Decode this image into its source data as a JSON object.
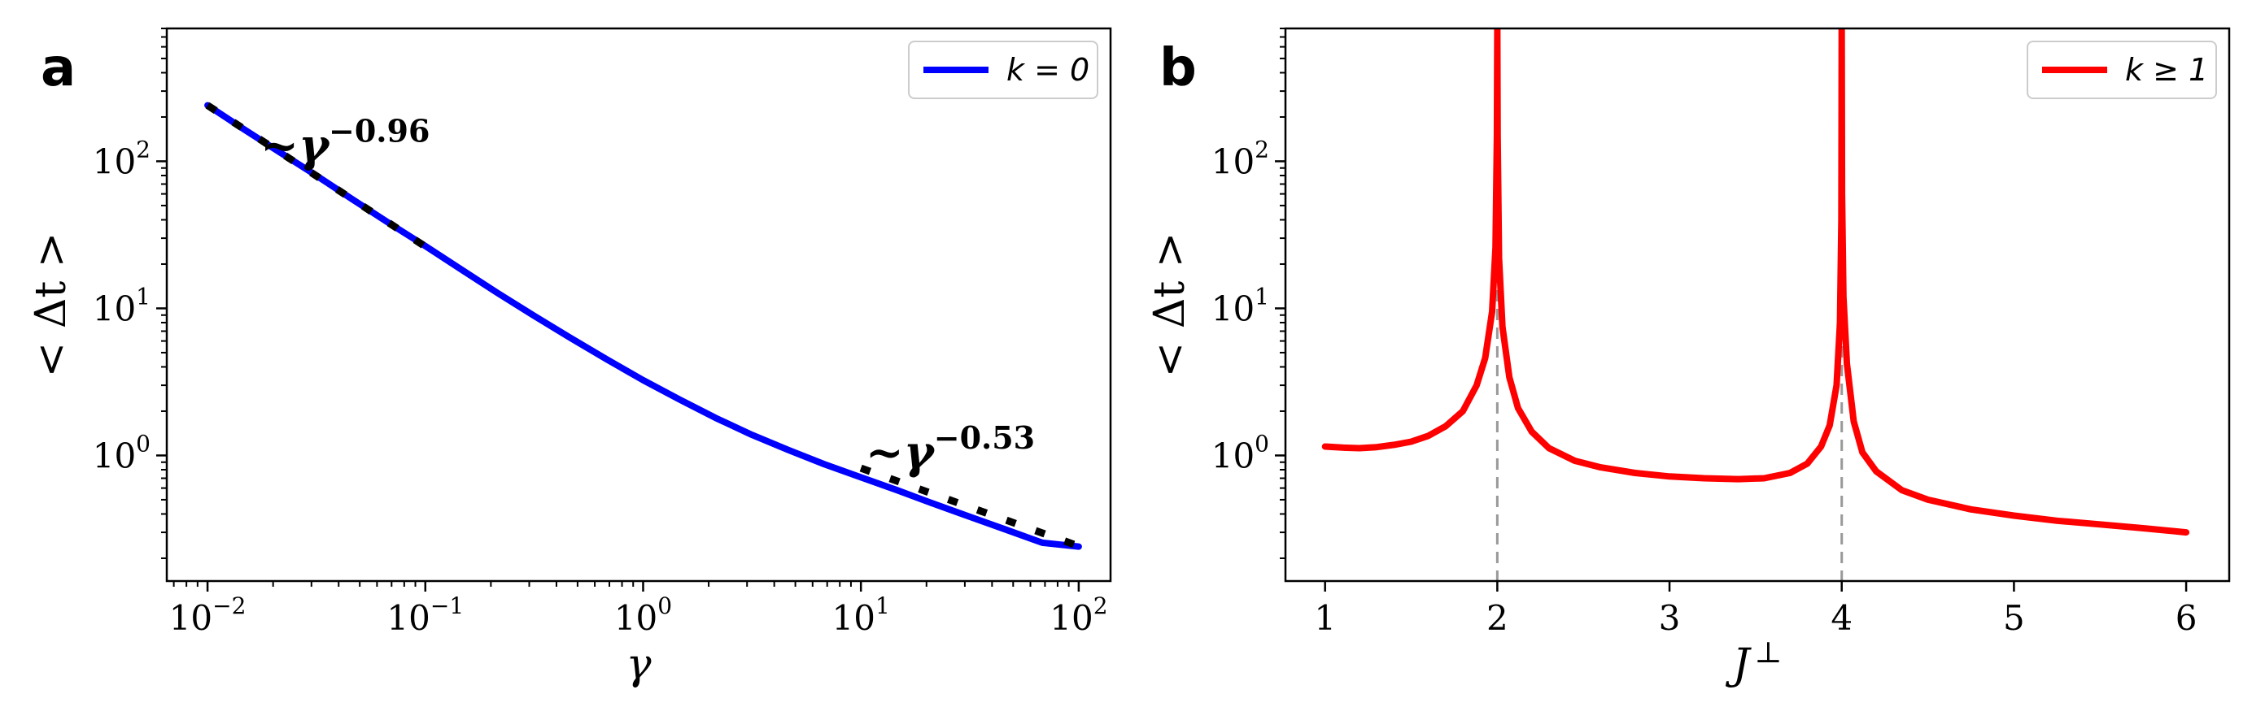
{
  "chart_data": [
    {
      "panel_label": "a",
      "type": "line",
      "xlabel": "γ",
      "ylabel": "< Δt >",
      "x_scale": "log",
      "y_scale": "log",
      "xlim": [
        0.0065,
        140
      ],
      "ylim": [
        0.14,
        800
      ],
      "grid": false,
      "legend_position": "top-right",
      "x_ticks": [
        {
          "base": "10",
          "exp": "−2",
          "value": 0.01
        },
        {
          "base": "10",
          "exp": "−1",
          "value": 0.1
        },
        {
          "base": "10",
          "exp": "0",
          "value": 1
        },
        {
          "base": "10",
          "exp": "1",
          "value": 10
        },
        {
          "base": "10",
          "exp": "2",
          "value": 100
        }
      ],
      "y_ticks": [
        {
          "base": "10",
          "exp": "0",
          "value": 1
        },
        {
          "base": "10",
          "exp": "1",
          "value": 10
        },
        {
          "base": "10",
          "exp": "2",
          "value": 100
        }
      ],
      "series": [
        {
          "name": "k = 0",
          "color": "#0000ff",
          "x": [
            0.01,
            0.0147,
            0.0215,
            0.0316,
            0.0464,
            0.0681,
            0.1,
            0.147,
            0.215,
            0.316,
            0.464,
            0.681,
            1.0,
            1.47,
            2.15,
            3.16,
            4.64,
            6.81,
            10,
            14.7,
            21.5,
            31.6,
            46.4,
            68.1,
            100
          ],
          "y": [
            240,
            165,
            115,
            80,
            55,
            38,
            26.5,
            18.3,
            12.7,
            8.9,
            6.3,
            4.5,
            3.25,
            2.4,
            1.8,
            1.38,
            1.09,
            0.87,
            0.71,
            0.58,
            0.47,
            0.383,
            0.313,
            0.255,
            0.24
          ]
        }
      ],
      "fits": [
        {
          "color": "#000000",
          "style": "dashed",
          "x_start": 0.01,
          "x_end": 0.1,
          "y_start": 240,
          "slope": -0.96
        },
        {
          "color": "#000000",
          "style": "dashed",
          "x_start": 10,
          "x_end": 100,
          "y_start": 0.82,
          "slope": -0.53
        }
      ],
      "annotations": [
        {
          "prefix": "~",
          "base": "γ",
          "exp": "−0.96",
          "at": {
            "x": 0.0175,
            "y": 100
          }
        },
        {
          "prefix": "~",
          "base": "γ",
          "exp": "−0.53",
          "at": {
            "x": 10.5,
            "y": 0.82
          }
        }
      ]
    },
    {
      "panel_label": "b",
      "type": "line",
      "xlabel": "J",
      "xlabel_superscript": "⊥",
      "ylabel": "< Δt >",
      "x_scale": "linear",
      "y_scale": "log",
      "xlim": [
        0.77,
        6.25
      ],
      "ylim": [
        0.14,
        800
      ],
      "grid": false,
      "legend_position": "top-right",
      "x_ticks": [
        1,
        2,
        3,
        4,
        5,
        6
      ],
      "y_ticks": [
        {
          "base": "10",
          "exp": "0",
          "value": 1
        },
        {
          "base": "10",
          "exp": "1",
          "value": 10
        },
        {
          "base": "10",
          "exp": "2",
          "value": 100
        }
      ],
      "vlines": [
        {
          "x": 2,
          "color": "#999999",
          "style": "dashed"
        },
        {
          "x": 4,
          "color": "#999999",
          "style": "dashed"
        }
      ],
      "series": [
        {
          "name": "k ≥ 1",
          "color": "#ff0000",
          "x": [
            1.0,
            1.1,
            1.2,
            1.3,
            1.4,
            1.5,
            1.6,
            1.7,
            1.8,
            1.88,
            1.93,
            1.97,
            1.99,
            1.998,
            2.0,
            2.002,
            2.01,
            2.03,
            2.07,
            2.12,
            2.2,
            2.3,
            2.45,
            2.6,
            2.8,
            3.0,
            3.2,
            3.4,
            3.55,
            3.7,
            3.8,
            3.88,
            3.93,
            3.97,
            3.99,
            3.998,
            4.0,
            4.002,
            4.01,
            4.03,
            4.07,
            4.12,
            4.2,
            4.35,
            4.5,
            4.75,
            5.0,
            5.25,
            5.5,
            5.75,
            6.0
          ],
          "y": [
            1.15,
            1.13,
            1.12,
            1.14,
            1.18,
            1.24,
            1.36,
            1.58,
            2.0,
            3.0,
            4.6,
            9.5,
            26,
            150,
            800,
            150,
            22,
            7.5,
            3.4,
            2.1,
            1.45,
            1.12,
            0.92,
            0.83,
            0.76,
            0.72,
            0.7,
            0.69,
            0.7,
            0.76,
            0.88,
            1.15,
            1.6,
            3.0,
            8,
            40,
            800,
            60,
            12,
            4.2,
            1.7,
            1.05,
            0.78,
            0.58,
            0.5,
            0.43,
            0.39,
            0.36,
            0.34,
            0.32,
            0.3
          ]
        }
      ]
    }
  ]
}
